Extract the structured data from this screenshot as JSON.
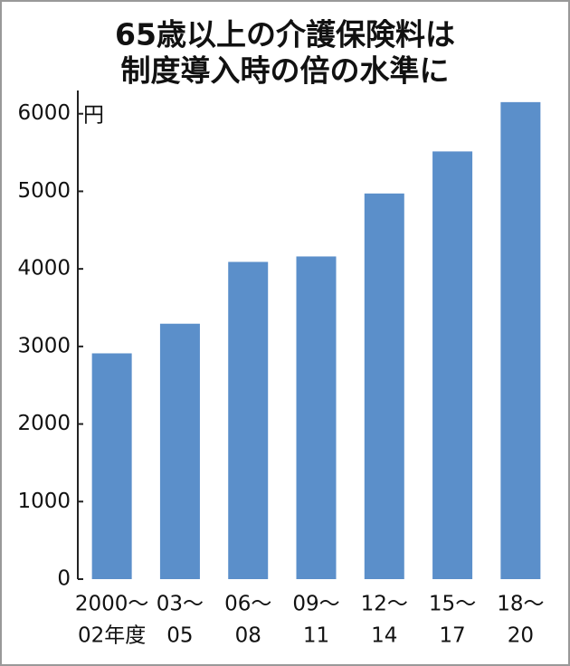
{
  "chart_data": {
    "type": "bar",
    "title": [
      "65歳以上の介護保険料は",
      "制度導入時の倍の水準に"
    ],
    "y_unit": "円",
    "categories": [
      [
        "2000～",
        "02年度"
      ],
      [
        "03～",
        "05"
      ],
      [
        "06～",
        "08"
      ],
      [
        "09～",
        "11"
      ],
      [
        "12～",
        "14"
      ],
      [
        "15～",
        "17"
      ],
      [
        "18～",
        "20"
      ]
    ],
    "values": [
      2911,
      3293,
      4090,
      4160,
      4972,
      5514,
      6150
    ],
    "color": "#5b8fca",
    "ylim": [
      0,
      6300
    ],
    "yticks": [
      0,
      1000,
      2000,
      3000,
      4000,
      5000,
      6000
    ],
    "grid": false
  }
}
